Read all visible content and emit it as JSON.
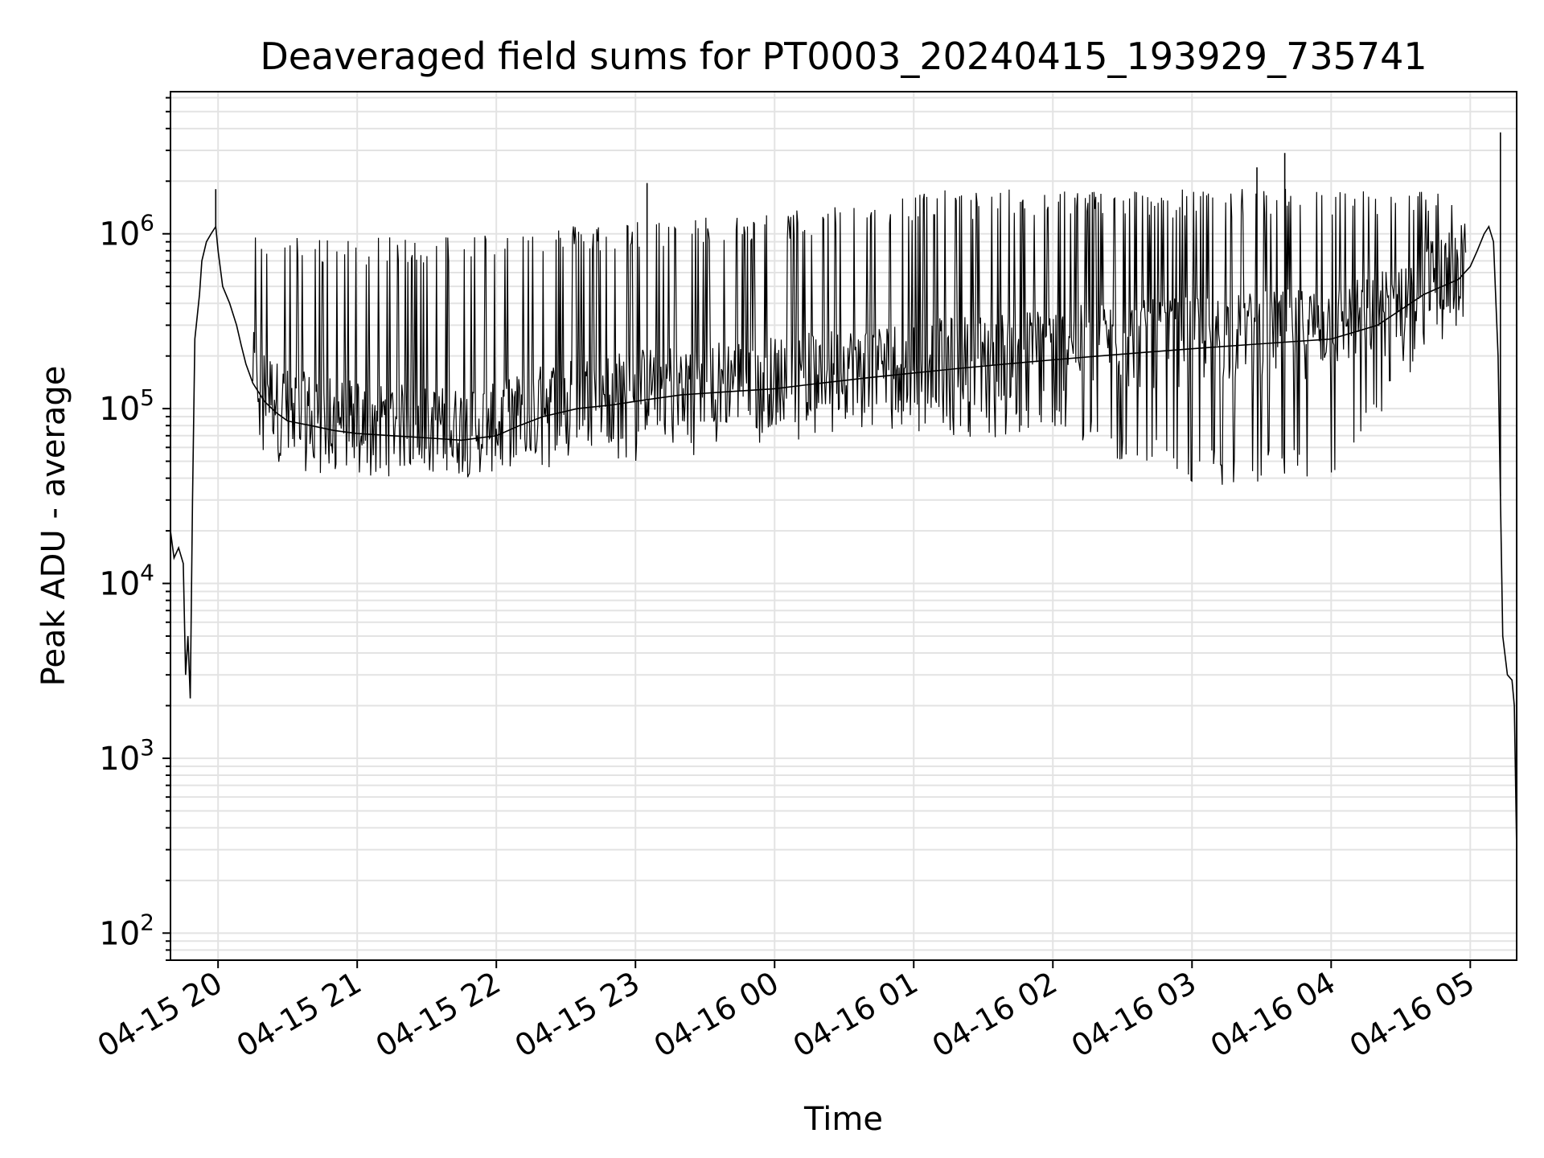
{
  "chart_data": {
    "type": "line",
    "title": "Deaveraged field sums for PT0003_20240415_193929_735741",
    "xlabel": "Time",
    "ylabel": "Peak ADU - average",
    "yscale": "log",
    "ylim": [
      70,
      6500000
    ],
    "xlim": [
      "2024-04-15T19:39:29",
      "2024-04-16T05:20:00"
    ],
    "grid": true,
    "line_color": "#000000",
    "x_ticks": [
      "2024-04-15T20:00",
      "2024-04-15T21:00",
      "2024-04-15T22:00",
      "2024-04-15T23:00",
      "2024-04-16T00:00",
      "2024-04-16T01:00",
      "2024-04-16T02:00",
      "2024-04-16T03:00",
      "2024-04-16T04:00",
      "2024-04-16T05:00"
    ],
    "x_tick_labels": [
      "04-15 20",
      "04-15 21",
      "04-15 22",
      "04-15 23",
      "04-16 00",
      "04-16 01",
      "04-16 02",
      "04-16 03",
      "04-16 04",
      "04-16 05"
    ],
    "y_ticks": [
      100,
      1000,
      10000,
      100000,
      1000000
    ],
    "y_tick_labels": [
      {
        "base": "10",
        "exp": "2"
      },
      {
        "base": "10",
        "exp": "3"
      },
      {
        "base": "10",
        "exp": "4"
      },
      {
        "base": "10",
        "exp": "5"
      },
      {
        "base": "10",
        "exp": "6"
      }
    ],
    "series": [
      {
        "x": [
          "2024-04-15T19:39:29",
          "2024-04-15T19:41",
          "2024-04-15T19:43",
          "2024-04-15T19:45",
          "2024-04-15T19:46",
          "2024-04-15T19:47",
          "2024-04-15T19:48",
          "2024-04-15T19:49",
          "2024-04-15T19:50",
          "2024-04-15T19:52",
          "2024-04-15T19:53",
          "2024-04-15T19:55",
          "2024-04-15T19:57",
          "2024-04-15T19:59",
          "2024-04-15T20:00",
          "2024-04-15T20:02",
          "2024-04-15T20:05",
          "2024-04-15T20:08",
          "2024-04-15T20:10",
          "2024-04-15T20:12",
          "2024-04-15T20:15",
          "2024-04-15T20:20",
          "2024-04-15T20:25",
          "2024-04-15T20:30",
          "2024-04-15T20:40",
          "2024-04-15T20:50",
          "2024-04-15T21:00",
          "2024-04-15T21:15",
          "2024-04-15T21:30",
          "2024-04-15T21:45",
          "2024-04-15T22:00",
          "2024-04-15T22:10",
          "2024-04-15T22:20",
          "2024-04-15T22:35",
          "2024-04-15T22:50",
          "2024-04-15T23:00",
          "2024-04-15T23:10",
          "2024-04-15T23:20",
          "2024-04-15T23:40",
          "2024-04-16T00:00",
          "2024-04-16T00:20",
          "2024-04-16T00:40",
          "2024-04-16T01:00",
          "2024-04-16T01:20",
          "2024-04-16T01:40",
          "2024-04-16T02:00",
          "2024-04-16T02:20",
          "2024-04-16T02:40",
          "2024-04-16T03:00",
          "2024-04-16T03:20",
          "2024-04-16T03:40",
          "2024-04-16T04:00",
          "2024-04-16T04:20",
          "2024-04-16T04:40",
          "2024-04-16T04:55",
          "2024-04-16T05:00",
          "2024-04-16T05:03",
          "2024-04-16T05:06",
          "2024-04-16T05:08",
          "2024-04-16T05:10",
          "2024-04-16T05:12",
          "2024-04-16T05:14",
          "2024-04-16T05:16",
          "2024-04-16T05:18",
          "2024-04-16T05:19",
          "2024-04-16T05:20"
        ],
        "y": [
          20000,
          14000,
          16000,
          13000,
          3000,
          5000,
          2200,
          30000,
          250000,
          450000,
          700000,
          900000,
          1000000,
          1100000,
          800000,
          500000,
          400000,
          300000,
          230000,
          180000,
          140000,
          110000,
          95000,
          85000,
          80000,
          75000,
          72000,
          70000,
          68000,
          66000,
          70000,
          80000,
          90000,
          100000,
          105000,
          110000,
          115000,
          120000,
          125000,
          130000,
          140000,
          150000,
          160000,
          170000,
          180000,
          190000,
          200000,
          210000,
          220000,
          230000,
          240000,
          250000,
          300000,
          450000,
          550000,
          650000,
          800000,
          1000000,
          1100000,
          900000,
          200000,
          5000,
          3000,
          2800,
          2000,
          300
        ]
      }
    ],
    "spike_band_upper": {
      "x": [
        "2024-04-15T20:15",
        "2024-04-15T21:00",
        "2024-04-15T22:00",
        "2024-04-15T23:00",
        "2024-04-16T00:00",
        "2024-04-16T01:00",
        "2024-04-16T02:00",
        "2024-04-16T03:00",
        "2024-04-16T04:00",
        "2024-04-16T05:00"
      ],
      "y": [
        900000,
        850000,
        950000,
        1100000,
        1200000,
        1600000,
        1650000,
        1650000,
        1650000,
        1600000
      ]
    },
    "spike_band_lower": {
      "x": [
        "2024-04-15T20:15",
        "2024-04-15T21:00",
        "2024-04-15T22:00",
        "2024-04-15T23:00",
        "2024-04-16T00:00",
        "2024-04-16T01:00",
        "2024-04-16T02:00",
        "2024-04-16T03:00",
        "2024-04-16T04:00",
        "2024-04-16T04:50"
      ],
      "y": [
        60000,
        50000,
        55000,
        60000,
        80000,
        90000,
        80000,
        45000,
        45000,
        300000
      ]
    },
    "peaks": [
      {
        "x": "2024-04-15T19:59",
        "y": 1800000
      },
      {
        "x": "2024-04-15T23:05",
        "y": 1950000
      },
      {
        "x": "2024-04-16T03:40",
        "y": 2900000
      },
      {
        "x": "2024-04-16T03:28",
        "y": 2400000
      },
      {
        "x": "2024-04-16T05:13",
        "y": 3800000
      }
    ]
  }
}
